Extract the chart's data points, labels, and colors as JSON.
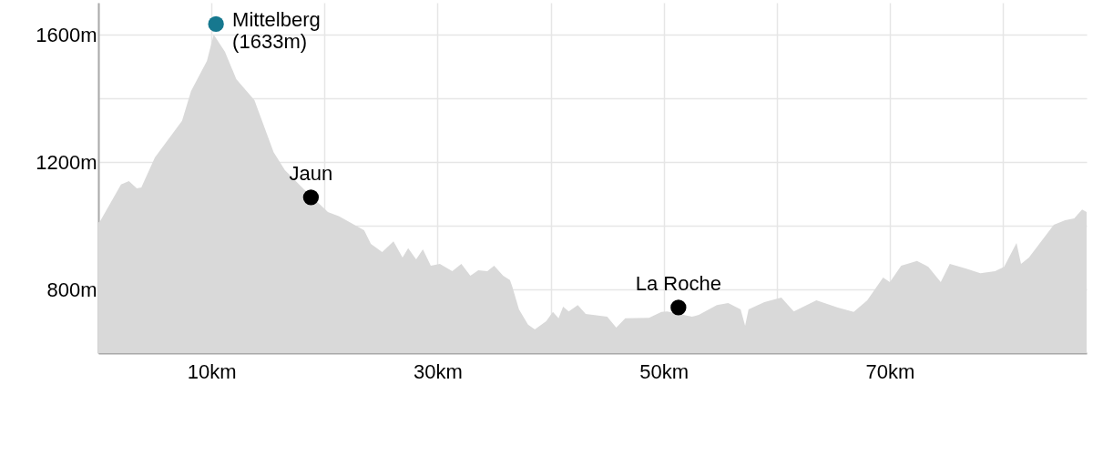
{
  "chart_data": {
    "type": "area",
    "xlim": [
      0,
      87.4
    ],
    "ylim": [
      600,
      1700
    ],
    "grid": true,
    "xticks": [
      {
        "value": 0,
        "label": null
      },
      {
        "value": 10,
        "label": "10km"
      },
      {
        "value": 20,
        "label": null
      },
      {
        "value": 30,
        "label": "30km"
      },
      {
        "value": 40,
        "label": null
      },
      {
        "value": 50,
        "label": "50km"
      },
      {
        "value": 60,
        "label": null
      },
      {
        "value": 70,
        "label": "70km"
      },
      {
        "value": 80,
        "label": null
      }
    ],
    "yticks": [
      {
        "value": 600,
        "label": null
      },
      {
        "value": 800,
        "label": "800m"
      },
      {
        "value": 1000,
        "label": null
      },
      {
        "value": 1200,
        "label": "1200m"
      },
      {
        "value": 1400,
        "label": null
      },
      {
        "value": 1600,
        "label": "1600m"
      }
    ],
    "series": [
      {
        "color": "#d9d9d9",
        "x": [
          0,
          0.16,
          2.0,
          2.7,
          3.4,
          3.8,
          5.0,
          7.4,
          8.2,
          9.6,
          10.2,
          11.2,
          12.2,
          13.8,
          15.5,
          16.5,
          18.1,
          20.3,
          21.3,
          23.5,
          24.1,
          25.1,
          26.1,
          26.9,
          27.4,
          28.1,
          28.7,
          29.4,
          30.2,
          31.3,
          32.1,
          32.9,
          33.6,
          34.4,
          35.0,
          35.8,
          36.4,
          36.6,
          37.2,
          38.0,
          38.6,
          39.6,
          40.2,
          40.7,
          41.1,
          41.6,
          42.4,
          43.1,
          45.0,
          45.8,
          46.6,
          48.7,
          49.8,
          50.3,
          52.5,
          53.1,
          54.7,
          55.7,
          56.8,
          57.2,
          57.5,
          58.9,
          60.4,
          61.5,
          63.5,
          65.4,
          66.8,
          68.0,
          69.4,
          70.0,
          71.0,
          72.4,
          73.4,
          74.5,
          75.3,
          76.7,
          78.0,
          79.3,
          80.1,
          81.2,
          81.6,
          82.3,
          84.5,
          85.5,
          86.3,
          87.0,
          87.4
        ],
        "values": [
          1010,
          1014,
          1129,
          1140,
          1117,
          1120,
          1214,
          1329,
          1423,
          1517,
          1600,
          1546,
          1460,
          1394,
          1231,
          1174,
          1117,
          1043,
          1029,
          986,
          943,
          917,
          951,
          900,
          929,
          894,
          926,
          874,
          880,
          857,
          880,
          843,
          860,
          857,
          874,
          843,
          829,
          809,
          737,
          689,
          674,
          700,
          729,
          709,
          746,
          731,
          751,
          723,
          714,
          680,
          709,
          711,
          729,
          731,
          714,
          720,
          751,
          757,
          737,
          686,
          737,
          760,
          774,
          731,
          766,
          743,
          729,
          766,
          837,
          823,
          874,
          889,
          871,
          823,
          880,
          866,
          851,
          857,
          871,
          946,
          880,
          900,
          1003,
          1017,
          1023,
          1051,
          1043
        ]
      },
      {
        "type": "scatter",
        "marker": "circle",
        "x": [
          10.4,
          18.8,
          51.3
        ],
        "values": [
          1633,
          1089,
          743
        ],
        "colors": [
          "#16788f",
          "#000000",
          "#000000"
        ]
      }
    ],
    "annotations": [
      {
        "text": "Mittelberg\n(1633m)",
        "x": 10.4,
        "y": 1633
      },
      {
        "text": "Jaun",
        "x": 18.8,
        "y": 1089
      },
      {
        "text": "La Roche",
        "x": 51.3,
        "y": 743
      }
    ]
  }
}
